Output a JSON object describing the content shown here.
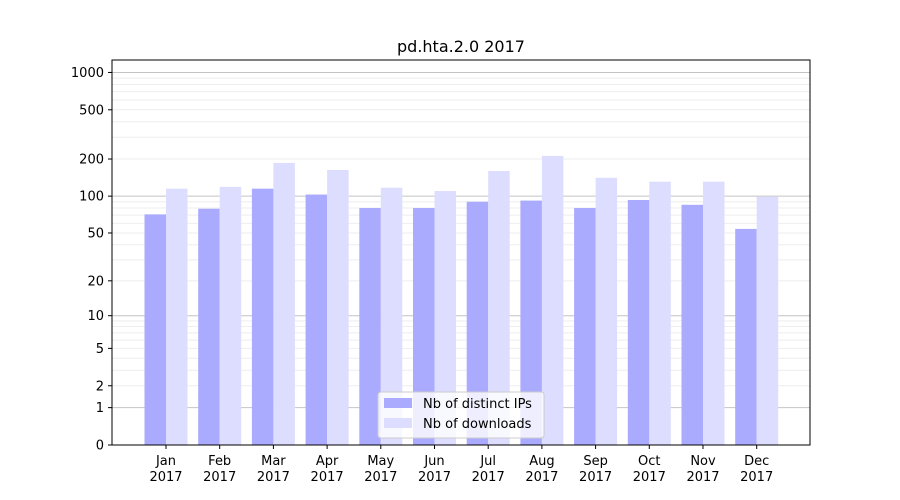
{
  "chart_data": {
    "type": "bar",
    "title": "pd.hta.2.0 2017",
    "xlabel": "",
    "ylabel": "",
    "yscale": "symlog",
    "ylim": [
      0,
      1260
    ],
    "yticks": [
      0,
      1,
      2,
      5,
      10,
      20,
      50,
      100,
      200,
      500,
      1000
    ],
    "categories": [
      "Jan\n2017",
      "Feb\n2017",
      "Mar\n2017",
      "Apr\n2017",
      "May\n2017",
      "Jun\n2017",
      "Jul\n2017",
      "Aug\n2017",
      "Sep\n2017",
      "Oct\n2017",
      "Nov\n2017",
      "Dec\n2017"
    ],
    "series": [
      {
        "name": "Nb of distinct IPs",
        "color": "#aaaaff",
        "values": [
          71,
          79,
          115,
          103,
          80,
          80,
          90,
          92,
          80,
          93,
          85,
          54
        ]
      },
      {
        "name": "Nb of downloads",
        "color": "#ddddff",
        "values": [
          115,
          119,
          186,
          163,
          117,
          110,
          160,
          212,
          141,
          131,
          131,
          99
        ]
      }
    ],
    "legend": "lower-center",
    "grid": true
  }
}
